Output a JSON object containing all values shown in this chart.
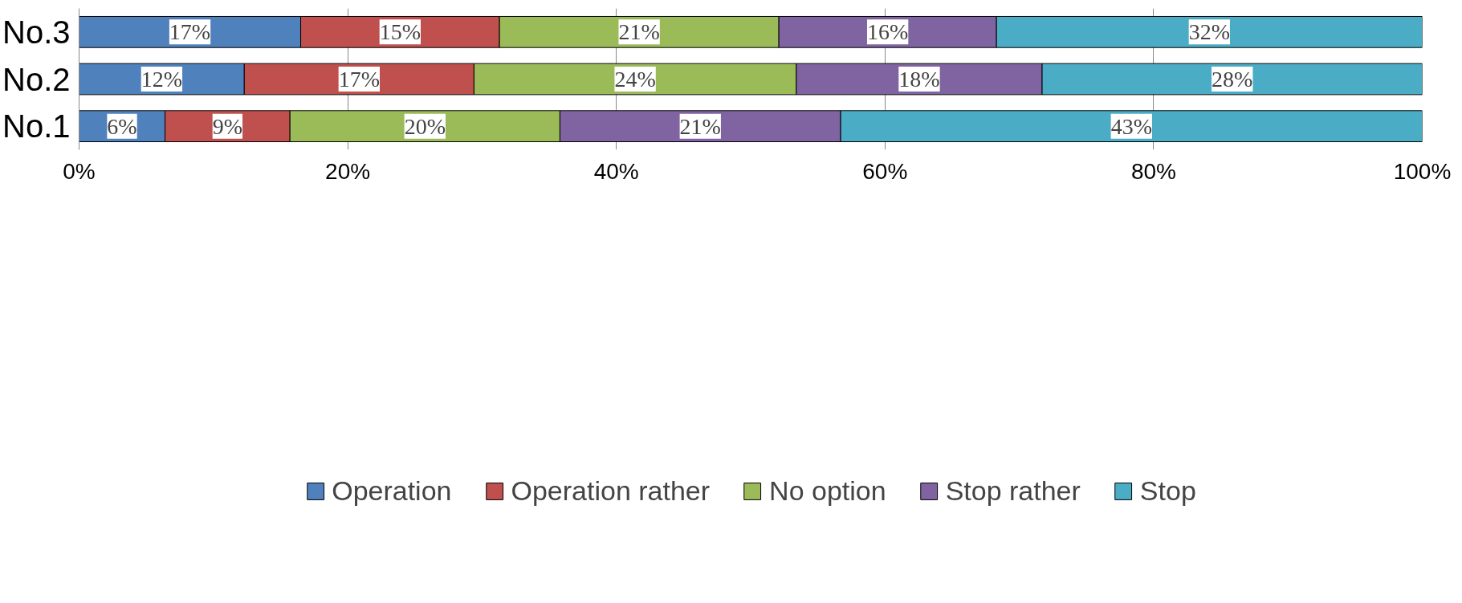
{
  "chart_data": {
    "type": "bar",
    "orientation": "horizontal",
    "stacked": true,
    "categories": [
      "No.3",
      "No.2",
      "No.1"
    ],
    "series": [
      {
        "name": "Operation",
        "color": "#4f81bd",
        "values": [
          16.5,
          12.3,
          6.4
        ],
        "value_labels": [
          "17%",
          "12%",
          "6%"
        ]
      },
      {
        "name": "Operation rather",
        "color": "#c0504d",
        "values": [
          14.8,
          17.1,
          9.3
        ],
        "value_labels": [
          "15%",
          "17%",
          "9%"
        ]
      },
      {
        "name": "No option",
        "color": "#9bbb59",
        "values": [
          20.8,
          24.0,
          20.1
        ],
        "value_labels": [
          "21%",
          "24%",
          "20%"
        ]
      },
      {
        "name": "Stop rather",
        "color": "#8064a2",
        "values": [
          16.2,
          18.3,
          20.9
        ],
        "value_labels": [
          "16%",
          "18%",
          "21%"
        ]
      },
      {
        "name": "Stop",
        "color": "#4bacc6",
        "values": [
          31.7,
          28.3,
          43.3
        ],
        "value_labels": [
          "32%",
          "28%",
          "43%"
        ]
      }
    ],
    "xlim": [
      0,
      100
    ],
    "xticks": [
      {
        "value": 0,
        "label": "0%"
      },
      {
        "value": 20,
        "label": "20%"
      },
      {
        "value": 40,
        "label": "40%"
      },
      {
        "value": 60,
        "label": "60%"
      },
      {
        "value": 80,
        "label": "80%"
      },
      {
        "value": 100,
        "label": "100%"
      }
    ],
    "grid": "x",
    "legend": "bottom"
  }
}
